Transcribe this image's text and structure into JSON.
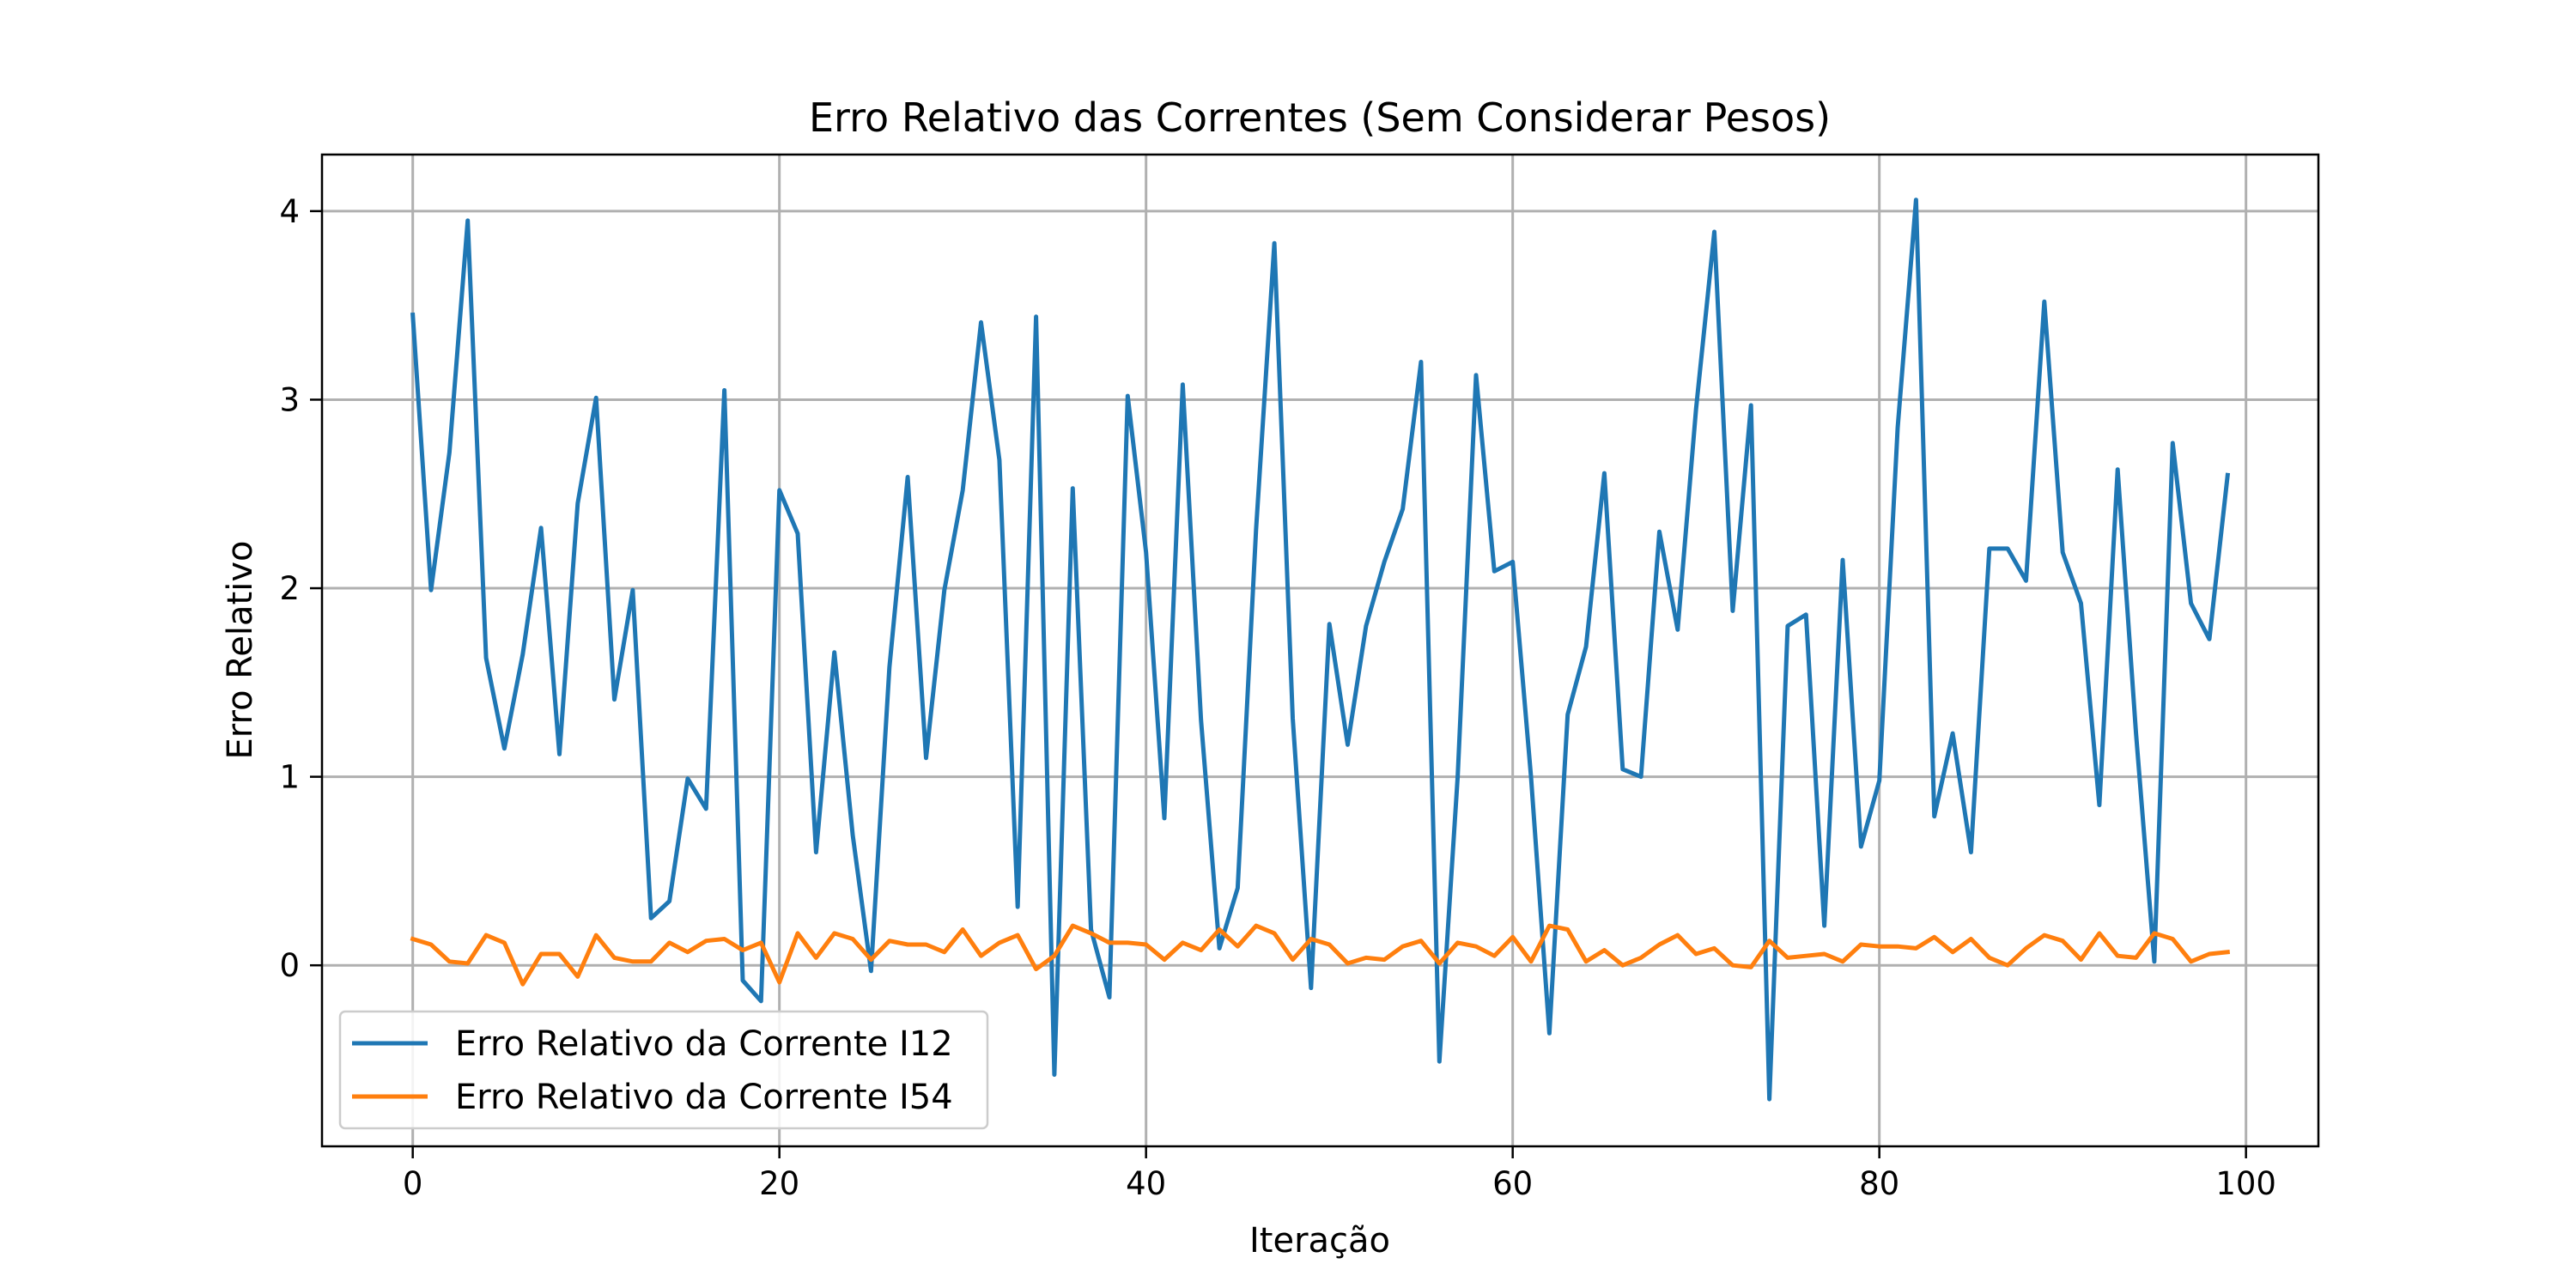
{
  "chart_data": {
    "type": "line",
    "title": "Erro Relativo das Correntes (Sem Considerar Pesos)",
    "xlabel": "Iteração",
    "ylabel": "Erro Relativo",
    "xlim": [
      -4.95,
      103.95
    ],
    "ylim": [
      -0.96,
      4.3
    ],
    "xticks": [
      0,
      20,
      40,
      60,
      80,
      100
    ],
    "yticks": [
      0,
      1,
      2,
      3,
      4
    ],
    "grid": true,
    "legend_position": "bottom-left",
    "x": [
      0,
      1,
      2,
      3,
      4,
      5,
      6,
      7,
      8,
      9,
      10,
      11,
      12,
      13,
      14,
      15,
      16,
      17,
      18,
      19,
      20,
      21,
      22,
      23,
      24,
      25,
      26,
      27,
      28,
      29,
      30,
      31,
      32,
      33,
      34,
      35,
      36,
      37,
      38,
      39,
      40,
      41,
      42,
      43,
      44,
      45,
      46,
      47,
      48,
      49,
      50,
      51,
      52,
      53,
      54,
      55,
      56,
      57,
      58,
      59,
      60,
      61,
      62,
      63,
      64,
      65,
      66,
      67,
      68,
      69,
      70,
      71,
      72,
      73,
      74,
      75,
      76,
      77,
      78,
      79,
      80,
      81,
      82,
      83,
      84,
      85,
      86,
      87,
      88,
      89,
      90,
      91,
      92,
      93,
      94,
      95,
      96,
      97,
      98,
      99
    ],
    "series": [
      {
        "name": "Erro Relativo da Corrente I12",
        "color": "#1f77b4",
        "values": [
          3.45,
          1.99,
          2.72,
          3.95,
          1.63,
          1.15,
          1.65,
          2.32,
          1.12,
          2.45,
          3.01,
          1.41,
          1.99,
          0.25,
          0.34,
          0.99,
          0.83,
          3.05,
          -0.08,
          -0.19,
          2.52,
          2.29,
          0.6,
          1.66,
          0.69,
          -0.03,
          1.58,
          2.59,
          1.1,
          1.99,
          2.52,
          3.41,
          2.68,
          0.31,
          3.44,
          -0.58,
          2.53,
          0.19,
          -0.17,
          3.02,
          2.19,
          0.78,
          3.08,
          1.3,
          0.09,
          0.41,
          2.31,
          3.83,
          1.31,
          -0.12,
          1.81,
          1.17,
          1.8,
          2.14,
          2.42,
          3.2,
          -0.51,
          1.0,
          3.13,
          2.09,
          2.14,
          1.0,
          -0.36,
          1.33,
          1.69,
          2.61,
          1.04,
          1.0,
          2.3,
          1.78,
          2.95,
          3.89,
          1.88,
          2.97,
          -0.71,
          1.8,
          1.86,
          0.21,
          2.15,
          0.63,
          0.98,
          2.85,
          4.06,
          0.79,
          1.23,
          0.6,
          2.21,
          2.21,
          2.04,
          3.52,
          2.19,
          1.92,
          0.85,
          2.63,
          1.23,
          0.02,
          2.77,
          1.92,
          1.73,
          2.6
        ]
      },
      {
        "name": "Erro Relativo da Corrente I54",
        "color": "#ff7f0e",
        "values": [
          0.14,
          0.11,
          0.02,
          0.01,
          0.16,
          0.12,
          -0.1,
          0.06,
          0.06,
          -0.06,
          0.16,
          0.04,
          0.02,
          0.02,
          0.12,
          0.07,
          0.13,
          0.14,
          0.08,
          0.12,
          -0.09,
          0.17,
          0.04,
          0.17,
          0.14,
          0.03,
          0.13,
          0.11,
          0.11,
          0.07,
          0.19,
          0.05,
          0.12,
          0.16,
          -0.02,
          0.05,
          0.21,
          0.17,
          0.12,
          0.12,
          0.11,
          0.03,
          0.12,
          0.08,
          0.19,
          0.1,
          0.21,
          0.17,
          0.03,
          0.14,
          0.11,
          0.01,
          0.04,
          0.03,
          0.1,
          0.13,
          0.01,
          0.12,
          0.1,
          0.05,
          0.15,
          0.02,
          0.21,
          0.19,
          0.02,
          0.08,
          0.0,
          0.04,
          0.11,
          0.16,
          0.06,
          0.09,
          0.0,
          -0.01,
          0.13,
          0.04,
          0.05,
          0.06,
          0.02,
          0.11,
          0.1,
          0.1,
          0.09,
          0.15,
          0.07,
          0.14,
          0.04,
          0.0,
          0.09,
          0.16,
          0.13,
          0.03,
          0.17,
          0.05,
          0.04,
          0.17,
          0.14,
          0.02,
          0.06,
          0.07
        ]
      }
    ]
  }
}
